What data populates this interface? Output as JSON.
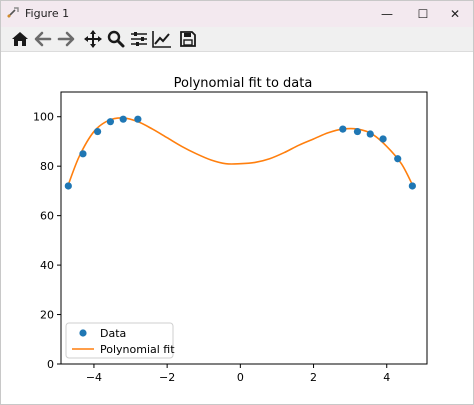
{
  "window": {
    "title": "Figure 1",
    "controls": {
      "minimize": "—",
      "maximize": "☐",
      "close": "✕"
    }
  },
  "toolbar": {
    "icons": [
      "home-icon",
      "back-arrow-icon",
      "forward-arrow-icon",
      "pan-icon",
      "zoom-icon",
      "configure-subplots-icon",
      "edit-axis-icon",
      "save-icon"
    ]
  },
  "chart_data": {
    "type": "scatter",
    "title": "Polynomial fit to data",
    "xlabel": "",
    "ylabel": "",
    "xlim": [
      -4.9,
      5.1
    ],
    "ylim": [
      0,
      110
    ],
    "xticks": [
      -4,
      -2,
      0,
      2,
      4
    ],
    "xtick_labels": [
      "−4",
      "−2",
      "0",
      "2",
      "4"
    ],
    "yticks": [
      0,
      20,
      40,
      60,
      80,
      100
    ],
    "ytick_labels": [
      "0",
      "20",
      "40",
      "60",
      "80",
      "100"
    ],
    "grid": false,
    "legend_position": "lower-left",
    "series": [
      {
        "name": "Data",
        "kind": "scatter",
        "color": "#1f77b4",
        "x": [
          -4.7,
          -4.3,
          -3.9,
          -3.55,
          -3.2,
          -2.8,
          2.8,
          3.2,
          3.55,
          3.9,
          4.3,
          4.7
        ],
        "y": [
          72,
          85,
          94,
          98,
          99,
          99,
          95,
          94,
          93,
          91,
          83,
          72
        ]
      },
      {
        "name": "Polynomial fit",
        "kind": "line",
        "color": "#ff7f0e",
        "x": [
          -4.7,
          -4.4,
          -4.0,
          -3.6,
          -3.2,
          -2.8,
          -2.4,
          -2.0,
          -1.6,
          -1.2,
          -0.8,
          -0.4,
          0.0,
          0.4,
          0.8,
          1.2,
          1.6,
          2.0,
          2.4,
          2.8,
          3.2,
          3.6,
          4.0,
          4.4,
          4.7
        ],
        "y": [
          72.5,
          84,
          94,
          98.5,
          99.5,
          98,
          95,
          91.5,
          88,
          85,
          82.5,
          81,
          81,
          81.5,
          83,
          85.5,
          88.5,
          91,
          93.5,
          95,
          95,
          93,
          88,
          81,
          72.5
        ]
      }
    ]
  }
}
